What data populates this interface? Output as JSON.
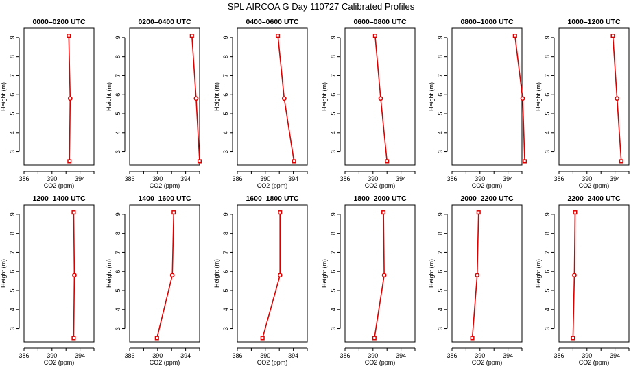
{
  "title": "SPL AIRCOA G  Day 110727  Calibrated Profiles",
  "chart_data": [
    {
      "type": "line",
      "title": "0000–0200 UTC",
      "xlabel": "CO2 (ppm)",
      "ylabel": "Height (m)",
      "xlim": [
        386,
        396
      ],
      "ylim": [
        2.3,
        9.5
      ],
      "x_ticks": [
        386,
        390,
        394
      ],
      "y_ticks": [
        3,
        4,
        5,
        6,
        7,
        8,
        9
      ],
      "series": [
        {
          "values": [
            {
              "x": 392.4,
              "y": 9.1
            },
            {
              "x": 392.6,
              "y": 5.8
            },
            {
              "x": 392.5,
              "y": 2.5
            }
          ]
        }
      ]
    },
    {
      "type": "line",
      "title": "0200–0400 UTC",
      "xlabel": "CO2 (ppm)",
      "ylabel": "Height (m)",
      "xlim": [
        386,
        396
      ],
      "ylim": [
        2.3,
        9.5
      ],
      "x_ticks": [
        386,
        390,
        394
      ],
      "y_ticks": [
        3,
        4,
        5,
        6,
        7,
        8,
        9
      ],
      "series": [
        {
          "values": [
            {
              "x": 394.9,
              "y": 9.1
            },
            {
              "x": 395.5,
              "y": 5.8
            },
            {
              "x": 396.0,
              "y": 2.5
            }
          ]
        }
      ]
    },
    {
      "type": "line",
      "title": "0400–0600 UTC",
      "xlabel": "CO2 (ppm)",
      "ylabel": "Height (m)",
      "xlim": [
        386,
        396
      ],
      "ylim": [
        2.3,
        9.5
      ],
      "x_ticks": [
        386,
        390,
        394
      ],
      "y_ticks": [
        3,
        4,
        5,
        6,
        7,
        8,
        9
      ],
      "series": [
        {
          "values": [
            {
              "x": 391.8,
              "y": 9.1
            },
            {
              "x": 392.7,
              "y": 5.8
            },
            {
              "x": 394.1,
              "y": 2.5
            }
          ]
        }
      ]
    },
    {
      "type": "line",
      "title": "0600–0800 UTC",
      "xlabel": "CO2 (ppm)",
      "ylabel": "Height (m)",
      "xlim": [
        386,
        396
      ],
      "ylim": [
        2.3,
        9.5
      ],
      "x_ticks": [
        386,
        390,
        394
      ],
      "y_ticks": [
        3,
        4,
        5,
        6,
        7,
        8,
        9
      ],
      "series": [
        {
          "values": [
            {
              "x": 390.3,
              "y": 9.1
            },
            {
              "x": 391.1,
              "y": 5.8
            },
            {
              "x": 392.0,
              "y": 2.5
            }
          ]
        }
      ]
    },
    {
      "type": "line",
      "title": "0800–1000 UTC",
      "xlabel": "CO2 (ppm)",
      "ylabel": "Height (m)",
      "xlim": [
        386,
        396
      ],
      "ylim": [
        2.3,
        9.5
      ],
      "x_ticks": [
        386,
        390,
        394
      ],
      "y_ticks": [
        3,
        4,
        5,
        6,
        7,
        8,
        9
      ],
      "series": [
        {
          "values": [
            {
              "x": 395.0,
              "y": 9.1
            },
            {
              "x": 396.1,
              "y": 5.8
            },
            {
              "x": 396.4,
              "y": 2.5
            }
          ]
        }
      ]
    },
    {
      "type": "line",
      "title": "1000–1200 UTC",
      "xlabel": "CO2 (ppm)",
      "ylabel": "Height (m)",
      "xlim": [
        386,
        396
      ],
      "ylim": [
        2.3,
        9.5
      ],
      "x_ticks": [
        386,
        390,
        394
      ],
      "y_ticks": [
        3,
        4,
        5,
        6,
        7,
        8,
        9
      ],
      "series": [
        {
          "values": [
            {
              "x": 393.7,
              "y": 9.1
            },
            {
              "x": 394.3,
              "y": 5.8
            },
            {
              "x": 394.9,
              "y": 2.5
            }
          ]
        }
      ]
    },
    {
      "type": "line",
      "title": "1200–1400 UTC",
      "xlabel": "CO2 (ppm)",
      "ylabel": "Height (m)",
      "xlim": [
        386,
        396
      ],
      "ylim": [
        2.3,
        9.5
      ],
      "x_ticks": [
        386,
        390,
        394
      ],
      "y_ticks": [
        3,
        4,
        5,
        6,
        7,
        8,
        9
      ],
      "series": [
        {
          "values": [
            {
              "x": 393.1,
              "y": 9.1
            },
            {
              "x": 393.2,
              "y": 5.8
            },
            {
              "x": 393.1,
              "y": 2.5
            }
          ]
        }
      ]
    },
    {
      "type": "line",
      "title": "1400–1600 UTC",
      "xlabel": "CO2 (ppm)",
      "ylabel": "Height (m)",
      "xlim": [
        386,
        396
      ],
      "ylim": [
        2.3,
        9.5
      ],
      "x_ticks": [
        386,
        390,
        394
      ],
      "y_ticks": [
        3,
        4,
        5,
        6,
        7,
        8,
        9
      ],
      "series": [
        {
          "values": [
            {
              "x": 392.3,
              "y": 9.1
            },
            {
              "x": 392.1,
              "y": 5.8
            },
            {
              "x": 389.9,
              "y": 2.5
            }
          ]
        }
      ]
    },
    {
      "type": "line",
      "title": "1600–1800 UTC",
      "xlabel": "CO2 (ppm)",
      "ylabel": "Height (m)",
      "xlim": [
        386,
        396
      ],
      "ylim": [
        2.3,
        9.5
      ],
      "x_ticks": [
        386,
        390,
        394
      ],
      "y_ticks": [
        3,
        4,
        5,
        6,
        7,
        8,
        9
      ],
      "series": [
        {
          "values": [
            {
              "x": 392.1,
              "y": 9.1
            },
            {
              "x": 392.1,
              "y": 5.8
            },
            {
              "x": 389.6,
              "y": 2.5
            }
          ]
        }
      ]
    },
    {
      "type": "line",
      "title": "1800–2000 UTC",
      "xlabel": "CO2 (ppm)",
      "ylabel": "Height (m)",
      "xlim": [
        386,
        396
      ],
      "ylim": [
        2.3,
        9.5
      ],
      "x_ticks": [
        386,
        390,
        394
      ],
      "y_ticks": [
        3,
        4,
        5,
        6,
        7,
        8,
        9
      ],
      "series": [
        {
          "values": [
            {
              "x": 391.5,
              "y": 9.1
            },
            {
              "x": 391.6,
              "y": 5.8
            },
            {
              "x": 390.2,
              "y": 2.5
            }
          ]
        }
      ]
    },
    {
      "type": "line",
      "title": "2000–2200 UTC",
      "xlabel": "CO2 (ppm)",
      "ylabel": "Height (m)",
      "xlim": [
        386,
        396
      ],
      "ylim": [
        2.3,
        9.5
      ],
      "x_ticks": [
        386,
        390,
        394
      ],
      "y_ticks": [
        3,
        4,
        5,
        6,
        7,
        8,
        9
      ],
      "series": [
        {
          "values": [
            {
              "x": 389.8,
              "y": 9.1
            },
            {
              "x": 389.6,
              "y": 5.8
            },
            {
              "x": 388.9,
              "y": 2.5
            }
          ]
        }
      ]
    },
    {
      "type": "line",
      "title": "2200–2400 UTC",
      "xlabel": "CO2 (ppm)",
      "ylabel": "Height (m)",
      "xlim": [
        386,
        396
      ],
      "ylim": [
        2.3,
        9.5
      ],
      "x_ticks": [
        386,
        390,
        394
      ],
      "y_ticks": [
        3,
        4,
        5,
        6,
        7,
        8,
        9
      ],
      "series": [
        {
          "values": [
            {
              "x": 388.3,
              "y": 9.1
            },
            {
              "x": 388.2,
              "y": 5.8
            },
            {
              "x": 388.0,
              "y": 2.5
            }
          ]
        }
      ]
    }
  ],
  "colors": {
    "series": "#dd0000",
    "axis": "#000000",
    "background": "#ffffff"
  }
}
